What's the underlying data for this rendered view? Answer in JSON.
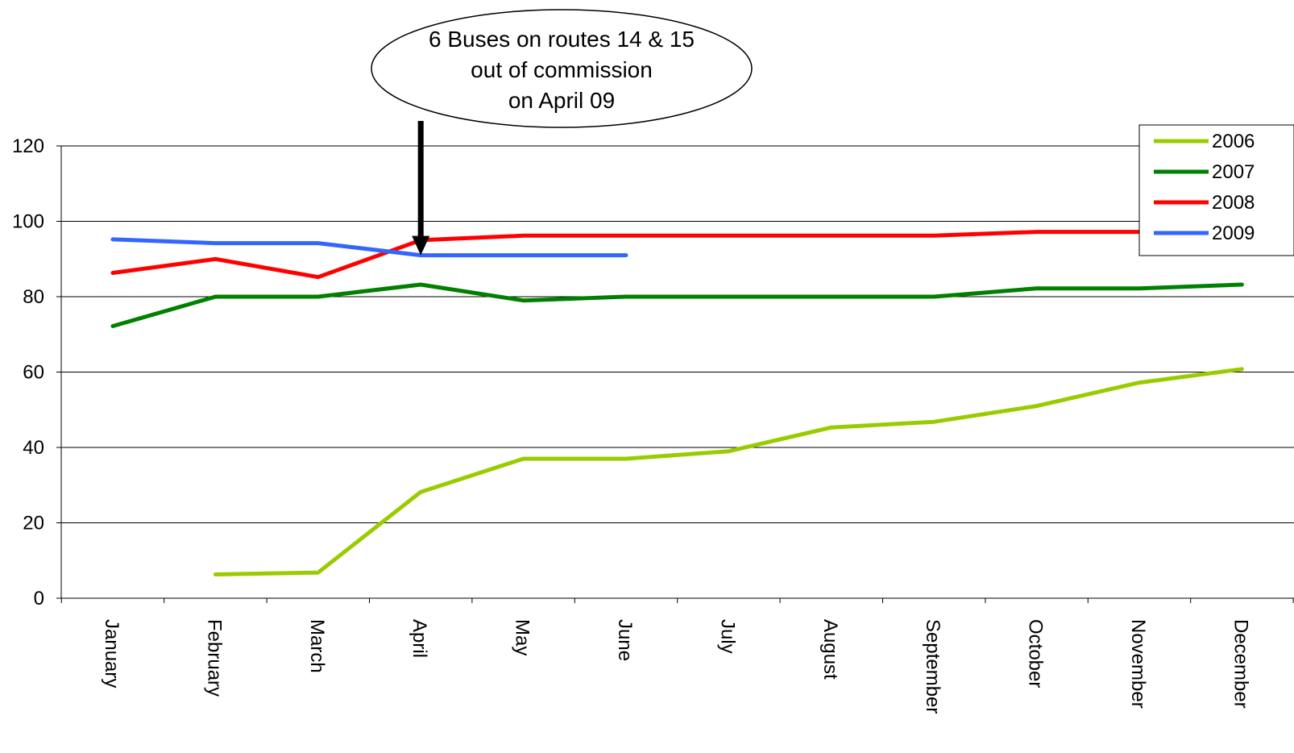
{
  "chart_data": {
    "type": "line",
    "categories": [
      "January",
      "February",
      "March",
      "April",
      "May",
      "June",
      "July",
      "August",
      "September",
      "October",
      "November",
      "December"
    ],
    "ylim": [
      0,
      120
    ],
    "yticks": [
      "0",
      "20",
      "40",
      "60",
      "80",
      "100",
      "120"
    ],
    "grid": "horizontal",
    "legend_position": "top-right",
    "series": [
      {
        "name": "2006",
        "color": "#99cc00",
        "values": [
          null,
          6.3,
          6.8,
          28.2,
          37,
          37,
          39,
          45.3,
          46.8,
          51,
          57.2,
          60.8
        ]
      },
      {
        "name": "2007",
        "color": "#008000",
        "values": [
          72.2,
          80,
          80,
          83.2,
          79,
          80,
          80,
          80,
          80,
          82.2,
          82.2,
          83.2
        ]
      },
      {
        "name": "2008",
        "color": "#ff0000",
        "values": [
          86.3,
          90,
          85.2,
          95,
          96.2,
          96.2,
          96.2,
          96.2,
          96.2,
          97.2,
          97.2,
          97.2
        ]
      },
      {
        "name": "2009",
        "color": "#3366ff",
        "values": [
          95.2,
          94.2,
          94.2,
          91,
          91,
          91,
          null,
          null,
          null,
          null,
          null,
          null
        ]
      }
    ],
    "annotation": {
      "lines": [
        "6 Buses on routes 14 & 15",
        "out of commission",
        "on April 09"
      ],
      "points_to_category": "April",
      "points_to_value": 91
    }
  }
}
